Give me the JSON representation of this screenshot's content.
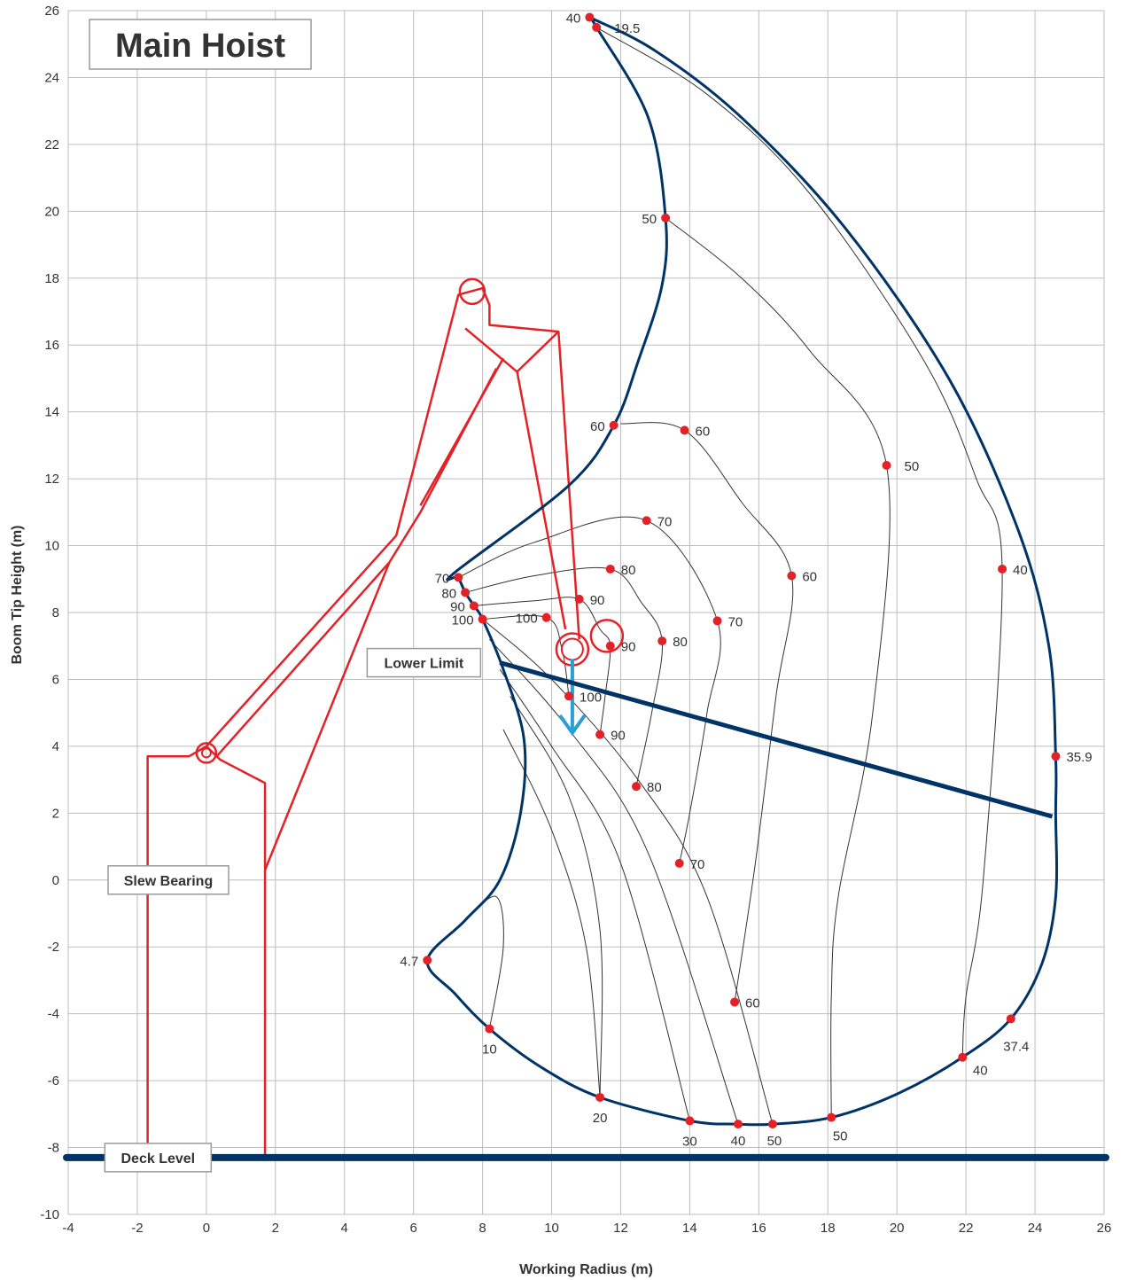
{
  "chart_data": {
    "type": "scatter",
    "title": "Main Hoist",
    "xlabel": "Working Radius (m)",
    "ylabel": "Boom Tip Height (m)",
    "xlim": [
      -4,
      26
    ],
    "ylim": [
      -10,
      26
    ],
    "x_ticks": [
      -4,
      -2,
      0,
      2,
      4,
      6,
      8,
      10,
      12,
      14,
      16,
      18,
      20,
      22,
      24,
      26
    ],
    "y_ticks": [
      -10,
      -8,
      -6,
      -4,
      -2,
      0,
      2,
      4,
      6,
      8,
      10,
      12,
      14,
      16,
      18,
      20,
      22,
      24,
      26
    ],
    "x_tick_labels": [
      "-4",
      "-2",
      "0",
      "2",
      "4",
      "6",
      "8",
      "10",
      "12",
      "14",
      "16",
      "18",
      "20",
      "22",
      "24",
      "26"
    ],
    "y_tick_labels": [
      "-10",
      "-8",
      "-6",
      "-4",
      "-2",
      "0",
      "2",
      "4",
      "6",
      "8",
      "10",
      "12",
      "14",
      "16",
      "18",
      "20",
      "22",
      "24",
      "26"
    ],
    "grid": true,
    "annotations": [
      {
        "text": "Lower Limit",
        "x": 6.3,
        "y": 6.5
      },
      {
        "text": "Slew Bearing",
        "x": -1.1,
        "y": 0
      },
      {
        "text": "Deck Level",
        "x": -1.4,
        "y": -8.3
      }
    ],
    "deck_level_y": -8.3,
    "lower_limit_line": [
      [
        8.5,
        6.5
      ],
      [
        24.5,
        1.9
      ]
    ],
    "envelope": [
      [
        11.1,
        25.8
      ],
      [
        11.3,
        25.5
      ],
      [
        12.8,
        22.8
      ],
      [
        13.3,
        19.8
      ],
      [
        13.2,
        17.8
      ],
      [
        12.5,
        15.5
      ],
      [
        11.8,
        13.6
      ],
      [
        10.5,
        11.8
      ],
      [
        7.2,
        9.2
      ],
      [
        7.3,
        9.05
      ],
      [
        7.5,
        8.6
      ],
      [
        7.75,
        8.2
      ],
      [
        8.0,
        7.8
      ],
      [
        8.6,
        6.3
      ],
      [
        9.2,
        4.2
      ],
      [
        9.1,
        2.0
      ],
      [
        8.5,
        0
      ],
      [
        7.5,
        -1.2
      ],
      [
        6.4,
        -2.4
      ],
      [
        7.2,
        -3.4
      ],
      [
        8.2,
        -4.45
      ],
      [
        9.7,
        -5.6
      ],
      [
        11.4,
        -6.5
      ],
      [
        14.0,
        -7.2
      ],
      [
        15.4,
        -7.3
      ],
      [
        16.4,
        -7.3
      ],
      [
        18.1,
        -7.1
      ],
      [
        20.0,
        -6.4
      ],
      [
        21.9,
        -5.3
      ],
      [
        23.3,
        -4.15
      ],
      [
        24.2,
        -2.5
      ],
      [
        24.6,
        -0.5
      ],
      [
        24.6,
        2.0
      ],
      [
        24.6,
        3.7
      ],
      [
        24.4,
        7.0
      ],
      [
        23.5,
        10.5
      ],
      [
        21.5,
        15.0
      ],
      [
        18.5,
        19.5
      ],
      [
        15.5,
        22.8
      ],
      [
        13.0,
        24.8
      ],
      [
        11.1,
        25.8
      ]
    ],
    "points": [
      {
        "x": 11.1,
        "y": 25.8,
        "label": "40"
      },
      {
        "x": 11.3,
        "y": 25.5,
        "label": "19.5"
      },
      {
        "x": 13.3,
        "y": 19.8,
        "label": "50"
      },
      {
        "x": 11.8,
        "y": 13.6,
        "label": "60"
      },
      {
        "x": 13.85,
        "y": 13.45,
        "label": "60"
      },
      {
        "x": 19.7,
        "y": 12.4,
        "label": "50"
      },
      {
        "x": 12.75,
        "y": 10.75,
        "label": "70"
      },
      {
        "x": 7.3,
        "y": 9.05,
        "label": "70"
      },
      {
        "x": 11.7,
        "y": 9.3,
        "label": "80"
      },
      {
        "x": 7.5,
        "y": 8.6,
        "label": "80"
      },
      {
        "x": 10.8,
        "y": 8.4,
        "label": "90"
      },
      {
        "x": 7.75,
        "y": 8.2,
        "label": "90"
      },
      {
        "x": 8.0,
        "y": 7.8,
        "label": "100"
      },
      {
        "x": 9.85,
        "y": 7.85,
        "label": "100"
      },
      {
        "x": 14.8,
        "y": 7.75,
        "label": "70"
      },
      {
        "x": 13.2,
        "y": 7.15,
        "label": "80"
      },
      {
        "x": 11.7,
        "y": 7.0,
        "label": "90"
      },
      {
        "x": 16.95,
        "y": 9.1,
        "label": "60"
      },
      {
        "x": 23.05,
        "y": 9.3,
        "label": "40"
      },
      {
        "x": 10.5,
        "y": 5.5,
        "label": "100"
      },
      {
        "x": 11.4,
        "y": 4.35,
        "label": "90"
      },
      {
        "x": 12.45,
        "y": 2.8,
        "label": "80"
      },
      {
        "x": 13.7,
        "y": 0.5,
        "label": "70"
      },
      {
        "x": 15.3,
        "y": -3.65,
        "label": "60"
      },
      {
        "x": 24.6,
        "y": 3.7,
        "label": "35.9"
      },
      {
        "x": 23.3,
        "y": -4.15,
        "label": "37.4"
      },
      {
        "x": 21.9,
        "y": -5.3,
        "label": "40"
      },
      {
        "x": 18.1,
        "y": -7.1,
        "label": "50"
      },
      {
        "x": 16.4,
        "y": -7.3,
        "label": "50"
      },
      {
        "x": 15.4,
        "y": -7.3,
        "label": "40"
      },
      {
        "x": 14.0,
        "y": -7.2,
        "label": "30"
      },
      {
        "x": 11.4,
        "y": -6.5,
        "label": "20"
      },
      {
        "x": 8.2,
        "y": -4.45,
        "label": "10"
      },
      {
        "x": 6.4,
        "y": -2.4,
        "label": "4.7"
      }
    ],
    "curves": [
      [
        [
          11.3,
          25.5
        ],
        [
          14.5,
          23.5
        ],
        [
          17.5,
          20.5
        ],
        [
          20.8,
          15.5
        ],
        [
          22.3,
          12.0
        ],
        [
          23.05,
          9.3
        ],
        [
          22.5,
          0.0
        ],
        [
          22.0,
          -3.5
        ],
        [
          21.9,
          -5.3
        ]
      ],
      [
        [
          13.3,
          19.8
        ],
        [
          15.5,
          18.0
        ],
        [
          17.5,
          15.8
        ],
        [
          19.7,
          12.4
        ],
        [
          19.3,
          5.0
        ],
        [
          18.3,
          -0.5
        ],
        [
          18.1,
          -3.5
        ],
        [
          18.1,
          -7.1
        ]
      ],
      [
        [
          12.0,
          13.65
        ],
        [
          13.85,
          13.45
        ],
        [
          15.5,
          11.3
        ],
        [
          16.95,
          9.1
        ],
        [
          16.5,
          5.5
        ],
        [
          15.9,
          0.5
        ],
        [
          15.3,
          -3.65
        ]
      ],
      [
        [
          7.3,
          9.05
        ],
        [
          9.5,
          10.1
        ],
        [
          12.75,
          10.75
        ],
        [
          14.8,
          7.75
        ],
        [
          14.5,
          5.0
        ],
        [
          14.0,
          2.0
        ],
        [
          13.7,
          0.5
        ]
      ],
      [
        [
          7.5,
          8.6
        ],
        [
          9.5,
          9.1
        ],
        [
          11.7,
          9.3
        ],
        [
          12.6,
          8.3
        ],
        [
          13.2,
          7.15
        ],
        [
          12.9,
          5.0
        ],
        [
          12.45,
          2.8
        ]
      ],
      [
        [
          7.75,
          8.2
        ],
        [
          9.5,
          8.35
        ],
        [
          10.8,
          8.4
        ],
        [
          11.4,
          7.5
        ],
        [
          11.7,
          7.0
        ],
        [
          11.55,
          5.5
        ],
        [
          11.4,
          4.35
        ]
      ],
      [
        [
          8.0,
          7.8
        ],
        [
          9.85,
          7.85
        ],
        [
          10.3,
          6.9
        ],
        [
          10.5,
          5.5
        ]
      ],
      [
        [
          8.0,
          7.8
        ],
        [
          10.0,
          6.0
        ],
        [
          12.5,
          3.0
        ],
        [
          14.5,
          -0.5
        ],
        [
          16.4,
          -7.3
        ]
      ],
      [
        [
          8.2,
          7.2
        ],
        [
          10.5,
          4.5
        ],
        [
          12.8,
          0.8
        ],
        [
          15.4,
          -7.3
        ]
      ],
      [
        [
          8.5,
          6.3
        ],
        [
          10.0,
          4.0
        ],
        [
          12.0,
          0.5
        ],
        [
          14.0,
          -7.2
        ]
      ],
      [
        [
          8.8,
          5.5
        ],
        [
          10.5,
          2.5
        ],
        [
          11.4,
          -1.5
        ],
        [
          11.4,
          -6.5
        ]
      ],
      [
        [
          8.6,
          4.5
        ],
        [
          10.0,
          1.5
        ],
        [
          11.0,
          -2.0
        ],
        [
          11.4,
          -6.5
        ]
      ],
      [
        [
          7.5,
          -1.2
        ],
        [
          8.4,
          -0.5
        ],
        [
          8.6,
          -2.0
        ],
        [
          8.2,
          -4.45
        ]
      ]
    ],
    "crane_outline": [
      [
        [
          -1.7,
          -8.3
        ],
        [
          -1.7,
          3.7
        ],
        [
          -0.5,
          3.7
        ],
        [
          0.0,
          4.0
        ],
        [
          0.4,
          3.6
        ],
        [
          1.7,
          2.9
        ],
        [
          1.7,
          -8.3
        ]
      ],
      [
        [
          0.0,
          4.0
        ],
        [
          5.5,
          10.3
        ],
        [
          7.3,
          17.5
        ],
        [
          8.0,
          17.7
        ],
        [
          8.2,
          17.2
        ],
        [
          8.2,
          16.6
        ],
        [
          10.2,
          16.4
        ],
        [
          10.8,
          7.2
        ]
      ],
      [
        [
          0.3,
          3.7
        ],
        [
          5.3,
          9.5
        ],
        [
          6.2,
          11.0
        ],
        [
          8.4,
          15.3
        ]
      ],
      [
        [
          7.5,
          16.5
        ],
        [
          9.0,
          15.2
        ],
        [
          10.2,
          16.4
        ]
      ],
      [
        [
          9.0,
          15.2
        ],
        [
          10.4,
          7.5
        ]
      ],
      [
        [
          1.7,
          0.3
        ],
        [
          5.3,
          9.5
        ]
      ],
      [
        [
          6.2,
          11.2
        ],
        [
          8.6,
          15.6
        ]
      ]
    ],
    "colors": {
      "envelope": "#003366",
      "crane": "#e32228",
      "points": "#e32228",
      "arrow": "#2a9fd6",
      "grid": "#bdbdbd",
      "curves": "#333333"
    }
  }
}
